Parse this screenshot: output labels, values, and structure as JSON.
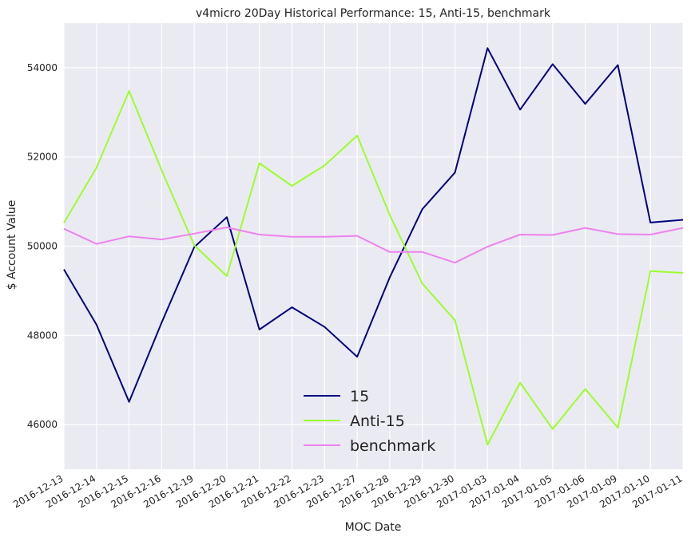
{
  "chart_data": {
    "type": "line",
    "title": "v4micro 20Day Historical Performance: 15, Anti-15, benchmark",
    "xlabel": "MOC Date",
    "ylabel": "$ Account Value",
    "ylim": [
      45000,
      55000
    ],
    "yticks": [
      46000,
      48000,
      50000,
      52000,
      54000
    ],
    "grid": true,
    "legend_position": "lower-center",
    "x": [
      "2016-12-13",
      "2016-12-14",
      "2016-12-15",
      "2016-12-16",
      "2016-12-19",
      "2016-12-20",
      "2016-12-21",
      "2016-12-22",
      "2016-12-23",
      "2016-12-27",
      "2016-12-28",
      "2016-12-29",
      "2016-12-30",
      "2017-01-03",
      "2017-01-04",
      "2017-01-05",
      "2017-01-06",
      "2017-01-09",
      "2017-01-10",
      "2017-01-11"
    ],
    "series": [
      {
        "name": "15",
        "color": "#000080",
        "values": [
          49480,
          48240,
          46510,
          48290,
          49980,
          50650,
          48130,
          48630,
          48190,
          47520,
          49300,
          50830,
          51650,
          54440,
          53060,
          54080,
          53190,
          54060,
          50530,
          50590
        ]
      },
      {
        "name": "Anti-15",
        "color": "#9aff2a",
        "values": [
          50520,
          51760,
          53480,
          51700,
          50020,
          49330,
          51860,
          51350,
          51810,
          52480,
          50700,
          49160,
          48340,
          45550,
          46940,
          45900,
          46800,
          45930,
          49440,
          49400
        ]
      },
      {
        "name": "benchmark",
        "color": "#ee82ee",
        "values": [
          50390,
          50050,
          50220,
          50150,
          50280,
          50420,
          50260,
          50210,
          50210,
          50230,
          49870,
          49870,
          49630,
          49990,
          50260,
          50250,
          50410,
          50270,
          50260,
          50410
        ]
      }
    ]
  }
}
